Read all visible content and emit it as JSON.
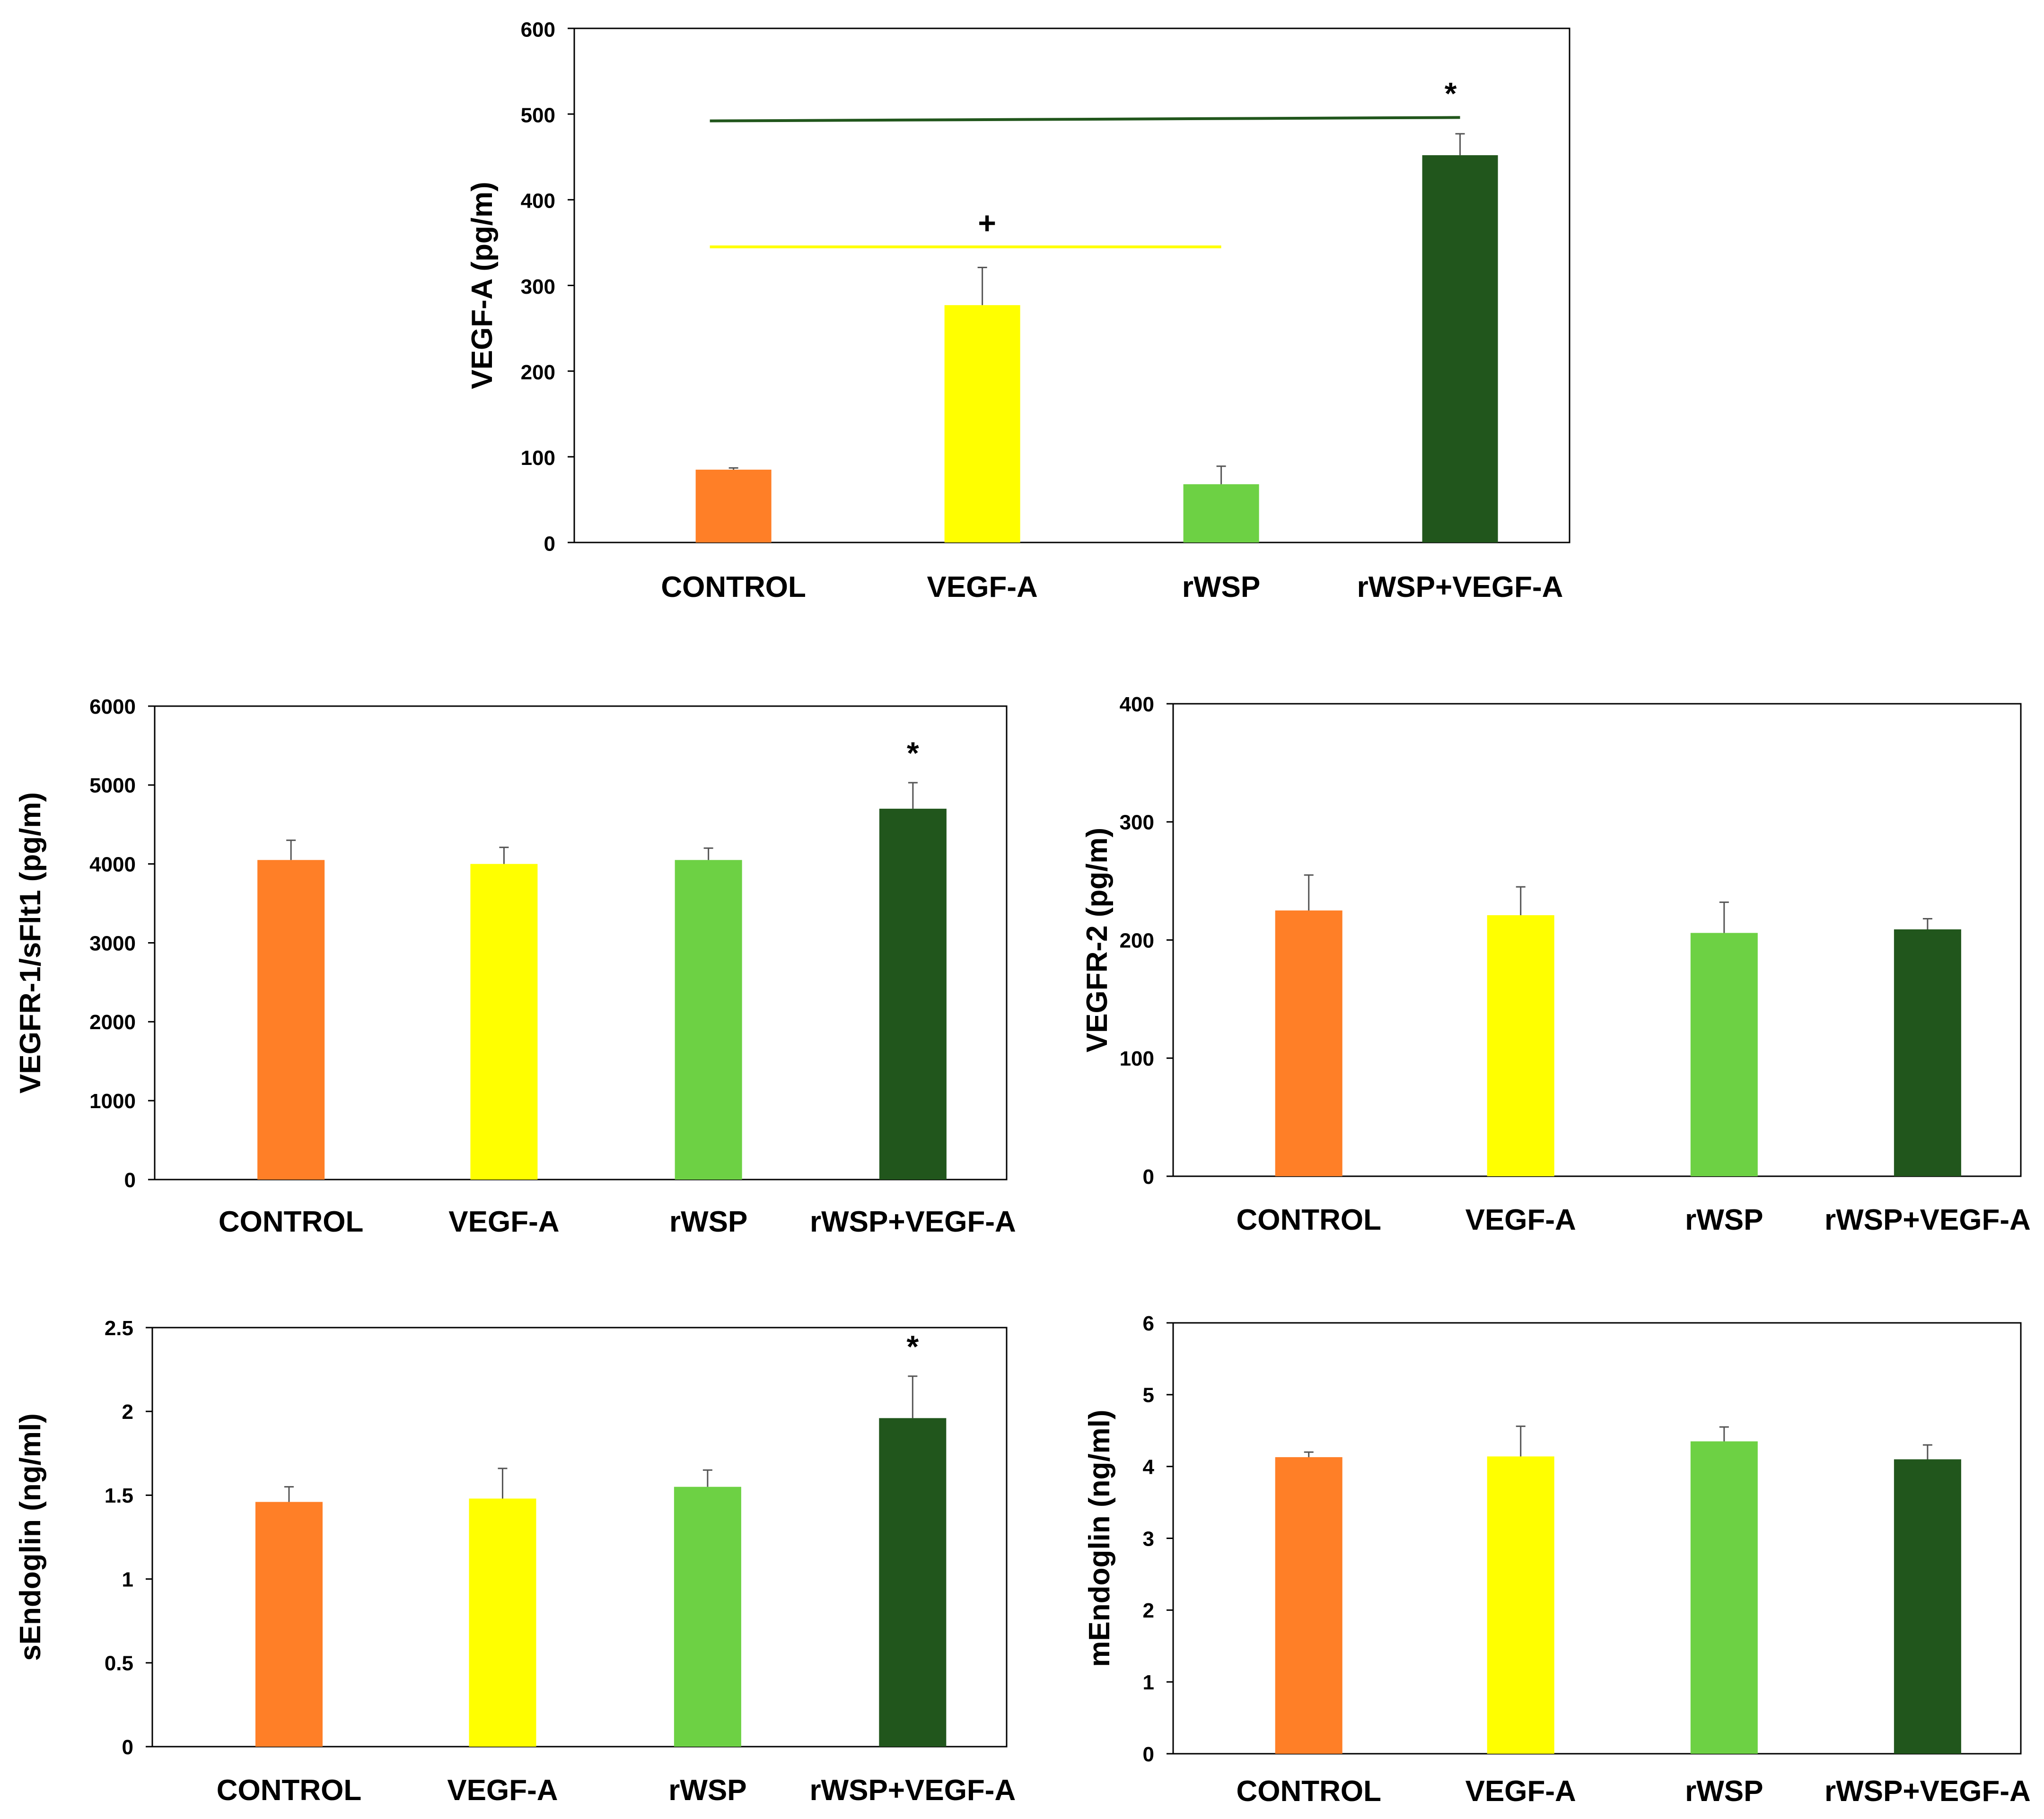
{
  "colors": {
    "CONTROL": "#FF7F27",
    "VEGF-A": "#FFFF00",
    "rWSP": "#6DD144",
    "rWSP+VEGF-A": "#21561C",
    "axis": "#000000",
    "errorbar": "#555555",
    "sig_line_dark": "#21561C",
    "sig_line_yellow": "#FFFF00"
  },
  "chart_data": [
    {
      "id": "vegfa",
      "type": "bar",
      "categories": [
        "CONTROL",
        "VEGF-A",
        "rWSP",
        "rWSP+VEGF-A"
      ],
      "values": [
        85,
        277,
        68,
        452
      ],
      "errors": [
        2,
        44,
        21,
        25
      ],
      "ylabel": "VEGF-A (pg/m)",
      "ylim": [
        0,
        600
      ],
      "ticks": [
        0,
        100,
        200,
        300,
        400,
        500,
        600
      ],
      "tick_labels": [
        "0",
        "100",
        "200",
        "300",
        "400",
        "500",
        "600"
      ],
      "grid": false,
      "bar_marks": [
        null,
        null,
        null,
        null
      ],
      "bracket_marks": [
        {
          "from": 0,
          "to": 3,
          "y_start": 492,
          "y_end": 496,
          "label": "*",
          "color_key": "sig_line_dark"
        },
        {
          "from": 0,
          "to": 2,
          "y_start": 345,
          "y_end": 345,
          "label": "+",
          "color_key": "sig_line_yellow"
        }
      ]
    },
    {
      "id": "vegfr1",
      "type": "bar",
      "categories": [
        "CONTROL",
        "VEGF-A",
        "rWSP",
        "rWSP+VEGF-A"
      ],
      "values": [
        4050,
        4000,
        4050,
        4700
      ],
      "errors": [
        250,
        210,
        150,
        330
      ],
      "ylabel": "VEGFR-1/sFlt1 (pg/m)",
      "ylim": [
        0,
        6000
      ],
      "ticks": [
        0,
        1000,
        2000,
        3000,
        4000,
        5000,
        6000
      ],
      "tick_labels": [
        "0",
        "1000",
        "2000",
        "3000",
        "4000",
        "5000",
        "6000"
      ],
      "grid": false,
      "bar_marks": [
        null,
        null,
        null,
        "*"
      ],
      "bracket_marks": []
    },
    {
      "id": "vegfr2",
      "type": "bar",
      "categories": [
        "CONTROL",
        "VEGF-A",
        "rWSP",
        "rWSP+VEGF-A"
      ],
      "values": [
        225,
        221,
        206,
        209
      ],
      "errors": [
        30,
        24,
        26,
        9
      ],
      "ylabel": "VEGFR-2 (pg/m)",
      "ylim": [
        0,
        400
      ],
      "ticks": [
        0,
        100,
        200,
        300,
        400
      ],
      "tick_labels": [
        "0",
        "100",
        "200",
        "300",
        "400"
      ],
      "grid": false,
      "bar_marks": [
        null,
        null,
        null,
        null
      ],
      "bracket_marks": []
    },
    {
      "id": "sendoglin",
      "type": "bar",
      "categories": [
        "CONTROL",
        "VEGF-A",
        "rWSP",
        "rWSP+VEGF-A"
      ],
      "values": [
        1.46,
        1.48,
        1.55,
        1.96
      ],
      "errors": [
        0.09,
        0.18,
        0.1,
        0.25
      ],
      "ylabel": "sEndoglin (ng/ml)",
      "ylim": [
        0,
        2.5
      ],
      "ticks": [
        0,
        0.5,
        1,
        1.5,
        2,
        2.5
      ],
      "tick_labels": [
        "0",
        "0.5",
        "1",
        "1.5",
        "2",
        "2.5"
      ],
      "grid": false,
      "bar_marks": [
        null,
        null,
        null,
        "*"
      ],
      "bracket_marks": []
    },
    {
      "id": "mendoglin",
      "type": "bar",
      "categories": [
        "CONTROL",
        "VEGF-A",
        "rWSP",
        "rWSP+VEGF-A"
      ],
      "values": [
        4.13,
        4.14,
        4.35,
        4.1
      ],
      "errors": [
        0.07,
        0.42,
        0.2,
        0.2
      ],
      "ylabel": "mEndoglin (ng/ml)",
      "ylim": [
        0,
        6
      ],
      "ticks": [
        0,
        1,
        2,
        3,
        4,
        5,
        6
      ],
      "tick_labels": [
        "0",
        "1",
        "2",
        "3",
        "4",
        "5",
        "6"
      ],
      "grid": false,
      "bar_marks": [
        null,
        null,
        null,
        null
      ],
      "bracket_marks": []
    }
  ]
}
